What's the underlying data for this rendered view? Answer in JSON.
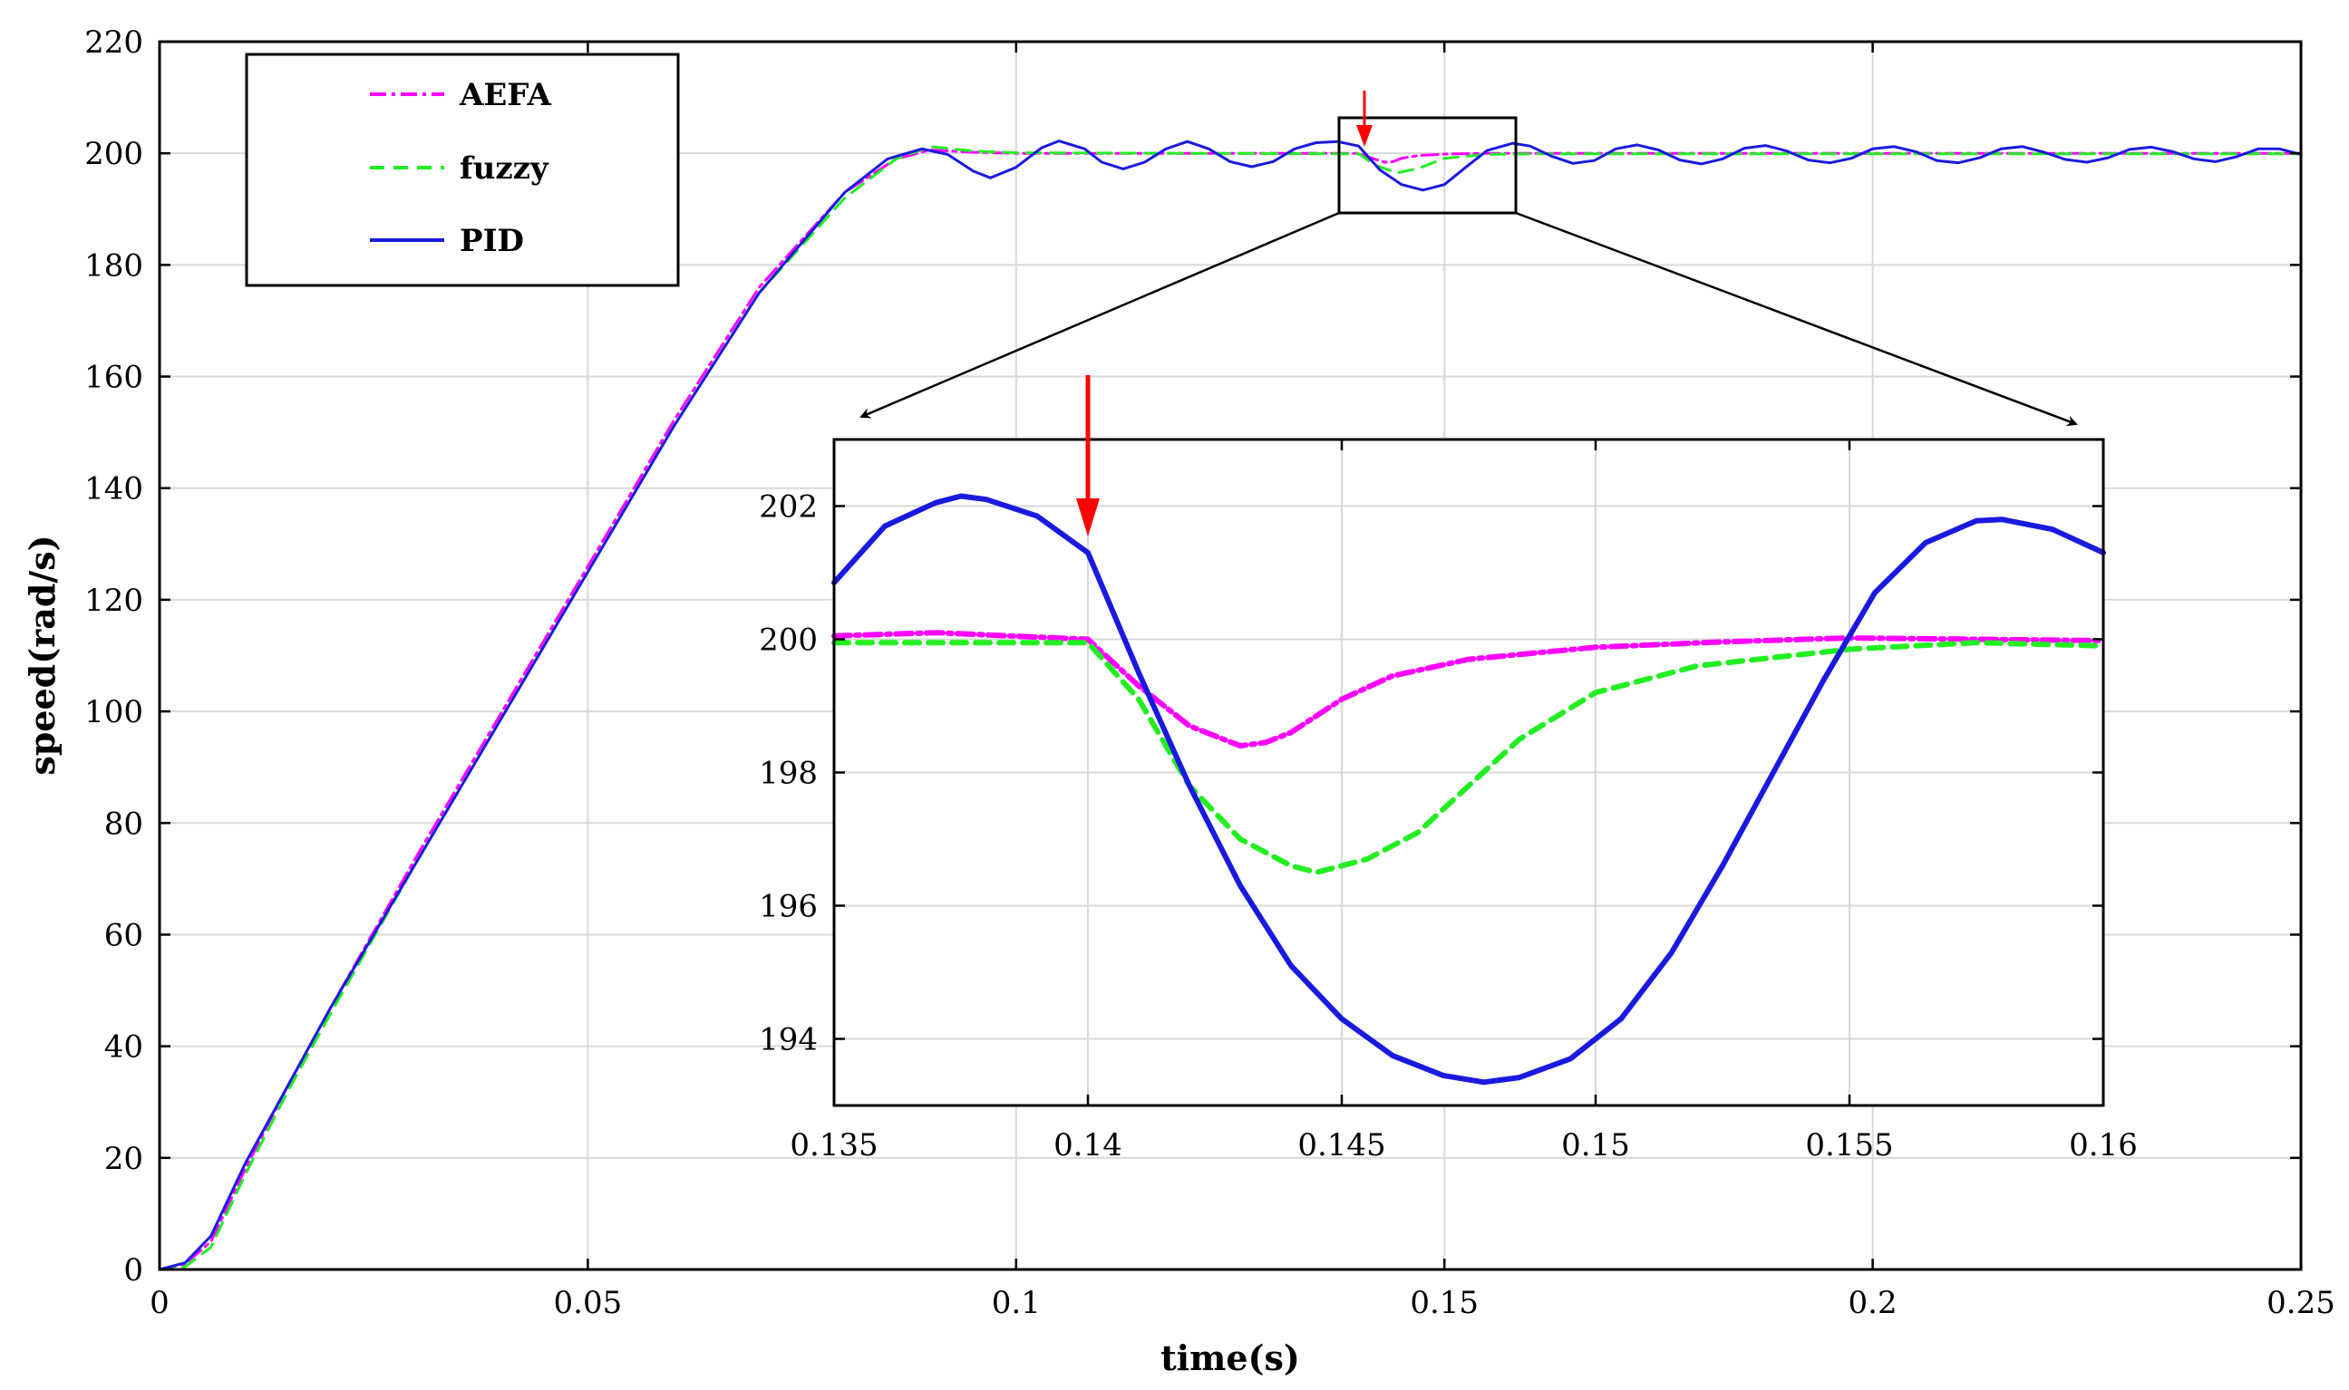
{
  "chart_data": [
    {
      "type": "line",
      "title": "",
      "xlabel": "time(s)",
      "ylabel": "speed(rad/s)",
      "xlim": [
        0,
        0.25
      ],
      "ylim": [
        0,
        220
      ],
      "xticks": [
        "0",
        "0.05",
        "0.1",
        "0.15",
        "0.2",
        "0.25"
      ],
      "yticks": [
        "0",
        "20",
        "40",
        "60",
        "80",
        "100",
        "120",
        "140",
        "160",
        "180",
        "200",
        "220"
      ],
      "grid": true,
      "legend_position": "top-left",
      "series": [
        {
          "name": "AEFA",
          "color": "#ff00ff",
          "style": "dash-dot",
          "points": [
            [
              0,
              0
            ],
            [
              0.003,
              1
            ],
            [
              0.006,
              5
            ],
            [
              0.01,
              18
            ],
            [
              0.015,
              33
            ],
            [
              0.02,
              47
            ],
            [
              0.03,
              74
            ],
            [
              0.04,
              100
            ],
            [
              0.05,
              126
            ],
            [
              0.06,
              152
            ],
            [
              0.07,
              176
            ],
            [
              0.08,
              193
            ],
            [
              0.086,
              199
            ],
            [
              0.09,
              200.6
            ],
            [
              0.095,
              200.2
            ],
            [
              0.1,
              200
            ],
            [
              0.14,
              200
            ],
            [
              0.141,
              199.4
            ],
            [
              0.143,
              198.4
            ],
            [
              0.144,
              198.5
            ],
            [
              0.145,
              199.1
            ],
            [
              0.147,
              199.6
            ],
            [
              0.15,
              199.85
            ],
            [
              0.155,
              200
            ],
            [
              0.25,
              200
            ]
          ]
        },
        {
          "name": "fuzzy",
          "color": "#22ee22",
          "style": "dashed",
          "points": [
            [
              0,
              0
            ],
            [
              0.003,
              0.5
            ],
            [
              0.006,
              4
            ],
            [
              0.01,
              17
            ],
            [
              0.015,
              32
            ],
            [
              0.02,
              46
            ],
            [
              0.03,
              73
            ],
            [
              0.04,
              99
            ],
            [
              0.05,
              125
            ],
            [
              0.06,
              151
            ],
            [
              0.07,
              175
            ],
            [
              0.08,
              192
            ],
            [
              0.086,
              199
            ],
            [
              0.09,
              201.2
            ],
            [
              0.095,
              200.4
            ],
            [
              0.1,
              200.1
            ],
            [
              0.14,
              199.9
            ],
            [
              0.142,
              197.8
            ],
            [
              0.1445,
              196.5
            ],
            [
              0.147,
              197.3
            ],
            [
              0.15,
              199.1
            ],
            [
              0.155,
              199.8
            ],
            [
              0.16,
              199.9
            ],
            [
              0.25,
              199.9
            ]
          ]
        },
        {
          "name": "PID",
          "color": "#1a1adf",
          "style": "solid",
          "points": [
            [
              0,
              0
            ],
            [
              0.003,
              1.2
            ],
            [
              0.006,
              6
            ],
            [
              0.01,
              19
            ],
            [
              0.015,
              33
            ],
            [
              0.02,
              47
            ],
            [
              0.03,
              73
            ],
            [
              0.04,
              99
            ],
            [
              0.05,
              125
            ],
            [
              0.06,
              151
            ],
            [
              0.07,
              175
            ],
            [
              0.08,
              193
            ],
            [
              0.085,
              199
            ],
            [
              0.089,
              200.8
            ],
            [
              0.092,
              199.8
            ],
            [
              0.095,
              196.8
            ],
            [
              0.097,
              195.6
            ],
            [
              0.1,
              197.5
            ],
            [
              0.103,
              201
            ],
            [
              0.105,
              202.2
            ],
            [
              0.108,
              200.8
            ],
            [
              0.11,
              198.4
            ],
            [
              0.1125,
              197.2
            ],
            [
              0.115,
              198.4
            ],
            [
              0.1175,
              200.8
            ],
            [
              0.12,
              202.1
            ],
            [
              0.1225,
              200.8
            ],
            [
              0.125,
              198.5
            ],
            [
              0.1275,
              197.6
            ],
            [
              0.13,
              198.5
            ],
            [
              0.1325,
              200.8
            ],
            [
              0.135,
              201.9
            ],
            [
              0.1375,
              202.1
            ],
            [
              0.14,
              201.3
            ],
            [
              0.1425,
              197
            ],
            [
              0.145,
              194.4
            ],
            [
              0.1475,
              193.4
            ],
            [
              0.15,
              194.4
            ],
            [
              0.1525,
              197.5
            ],
            [
              0.155,
              200.5
            ],
            [
              0.158,
              201.8
            ],
            [
              0.16,
              201.3
            ],
            [
              0.1625,
              199.5
            ],
            [
              0.165,
              198.2
            ],
            [
              0.1675,
              198.7
            ],
            [
              0.17,
              200.8
            ],
            [
              0.1725,
              201.5
            ],
            [
              0.175,
              200.6
            ],
            [
              0.1775,
              198.8
            ],
            [
              0.18,
              198.1
            ],
            [
              0.1825,
              199
            ],
            [
              0.185,
              200.9
            ],
            [
              0.1875,
              201.4
            ],
            [
              0.19,
              200.4
            ],
            [
              0.1925,
              198.8
            ],
            [
              0.195,
              198.3
            ],
            [
              0.1975,
              199.1
            ],
            [
              0.2,
              200.8
            ],
            [
              0.2025,
              201.2
            ],
            [
              0.205,
              200.3
            ],
            [
              0.2075,
              198.7
            ],
            [
              0.21,
              198.3
            ],
            [
              0.2125,
              199.2
            ],
            [
              0.215,
              200.8
            ],
            [
              0.2175,
              201.2
            ],
            [
              0.22,
              200.2
            ],
            [
              0.2225,
              198.9
            ],
            [
              0.225,
              198.4
            ],
            [
              0.2275,
              199.2
            ],
            [
              0.23,
              200.7
            ],
            [
              0.2325,
              201.1
            ],
            [
              0.235,
              200.3
            ],
            [
              0.2375,
              199
            ],
            [
              0.24,
              198.5
            ],
            [
              0.2425,
              199.4
            ],
            [
              0.245,
              200.8
            ],
            [
              0.2475,
              200.8
            ],
            [
              0.25,
              199.8
            ]
          ]
        }
      ],
      "annotations": [
        "red arrow at t = 0.14 s",
        "black zoom box t 0.135-0.16, speed 190-207"
      ]
    },
    {
      "type": "line",
      "title": "",
      "xlabel": "",
      "ylabel": "",
      "xlim": [
        0.135,
        0.16
      ],
      "ylim": [
        193,
        203
      ],
      "xticks": [
        "0.135",
        "0.14",
        "0.145",
        "0.15",
        "0.155",
        "0.16"
      ],
      "yticks": [
        "194",
        "196",
        "198",
        "200",
        "202"
      ],
      "grid": true,
      "series": [
        {
          "name": "AEFA",
          "color": "#ff00ff",
          "style": "dash-dot",
          "points": [
            [
              0.135,
              200.05
            ],
            [
              0.137,
              200.1
            ],
            [
              0.14,
              200
            ],
            [
              0.141,
              199.3
            ],
            [
              0.142,
              198.7
            ],
            [
              0.143,
              198.4
            ],
            [
              0.1435,
              198.45
            ],
            [
              0.144,
              198.6
            ],
            [
              0.145,
              199.1
            ],
            [
              0.146,
              199.45
            ],
            [
              0.1475,
              199.7
            ],
            [
              0.15,
              199.88
            ],
            [
              0.1525,
              199.96
            ],
            [
              0.155,
              200.02
            ],
            [
              0.1575,
              200
            ],
            [
              0.16,
              199.98
            ]
          ]
        },
        {
          "name": "fuzzy",
          "color": "#22ee22",
          "style": "dashed",
          "points": [
            [
              0.135,
              199.95
            ],
            [
              0.14,
              199.95
            ],
            [
              0.141,
              199.1
            ],
            [
              0.142,
              197.8
            ],
            [
              0.143,
              197
            ],
            [
              0.144,
              196.6
            ],
            [
              0.1445,
              196.5
            ],
            [
              0.1455,
              196.7
            ],
            [
              0.1465,
              197.1
            ],
            [
              0.1475,
              197.8
            ],
            [
              0.1485,
              198.5
            ],
            [
              0.15,
              199.2
            ],
            [
              0.152,
              199.6
            ],
            [
              0.155,
              199.85
            ],
            [
              0.1575,
              199.95
            ],
            [
              0.16,
              199.9
            ]
          ]
        },
        {
          "name": "PID",
          "color": "#1a1adf",
          "style": "solid",
          "points": [
            [
              0.135,
              200.85
            ],
            [
              0.136,
              201.7
            ],
            [
              0.137,
              202.05
            ],
            [
              0.1375,
              202.15
            ],
            [
              0.138,
              202.1
            ],
            [
              0.139,
              201.85
            ],
            [
              0.14,
              201.3
            ],
            [
              0.141,
              199.5
            ],
            [
              0.142,
              197.8
            ],
            [
              0.143,
              196.3
            ],
            [
              0.144,
              195.1
            ],
            [
              0.145,
              194.3
            ],
            [
              0.146,
              193.75
            ],
            [
              0.147,
              193.45
            ],
            [
              0.1478,
              193.35
            ],
            [
              0.1485,
              193.42
            ],
            [
              0.1495,
              193.7
            ],
            [
              0.1505,
              194.3
            ],
            [
              0.1515,
              195.3
            ],
            [
              0.1525,
              196.6
            ],
            [
              0.1535,
              198
            ],
            [
              0.1545,
              199.4
            ],
            [
              0.1555,
              200.7
            ],
            [
              0.1565,
              201.45
            ],
            [
              0.1575,
              201.78
            ],
            [
              0.158,
              201.8
            ],
            [
              0.159,
              201.65
            ],
            [
              0.16,
              201.3
            ]
          ]
        }
      ],
      "annotations": [
        "red arrow at t = 0.14 s"
      ]
    }
  ]
}
